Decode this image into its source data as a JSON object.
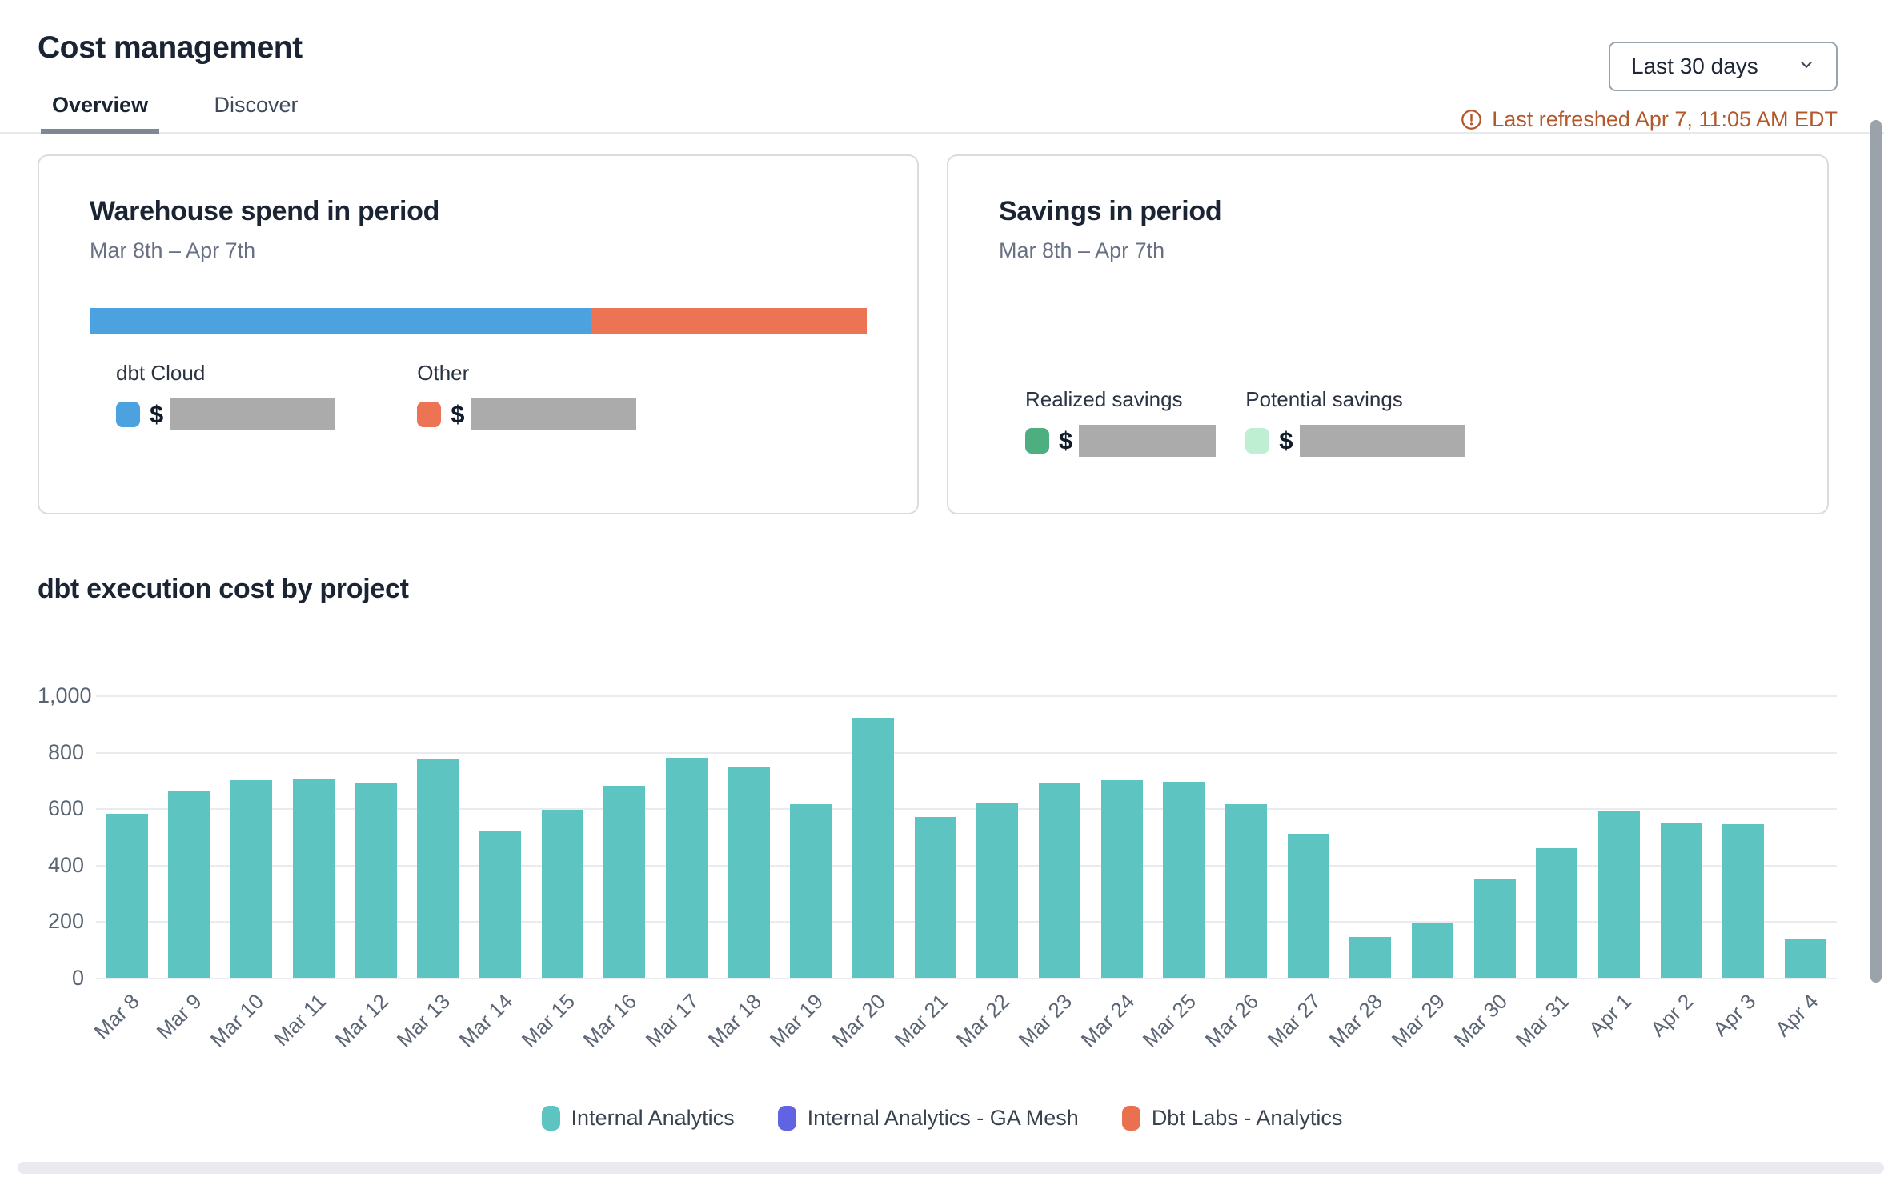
{
  "page": {
    "title": "Cost management"
  },
  "controls": {
    "date_range": {
      "value": "Last 30 days"
    },
    "refresh": {
      "text": "Last refreshed Apr 7, 11:05 AM EDT",
      "color": "#B2582A"
    }
  },
  "tabs": [
    {
      "label": "Overview",
      "active": true
    },
    {
      "label": "Discover",
      "active": false
    }
  ],
  "cards": {
    "warehouse": {
      "title": "Warehouse spend in period",
      "subtitle": "Mar 8th – Apr 7th",
      "entries": [
        {
          "label": "dbt Cloud",
          "color": "#4BA2DF",
          "currency_symbol": "$",
          "value_redacted": true,
          "share_pct": 64.6
        },
        {
          "label": "Other",
          "color": "#ED7355",
          "currency_symbol": "$",
          "value_redacted": true,
          "share_pct": 35.4
        }
      ]
    },
    "savings": {
      "title": "Savings in period",
      "subtitle": "Mar 8th – Apr 7th",
      "entries": [
        {
          "label": "Realized savings",
          "color": "#4DAE80",
          "currency_symbol": "$",
          "value_redacted": true
        },
        {
          "label": "Potential savings",
          "color": "#BEEFD3",
          "currency_symbol": "$",
          "value_redacted": true
        }
      ]
    }
  },
  "chart_section": {
    "title": "dbt execution cost by project"
  },
  "chart_data": {
    "type": "bar",
    "title": "dbt execution cost by project",
    "categories": [
      "Mar 8",
      "Mar 9",
      "Mar 10",
      "Mar 11",
      "Mar 12",
      "Mar 13",
      "Mar 14",
      "Mar 15",
      "Mar 16",
      "Mar 17",
      "Mar 18",
      "Mar 19",
      "Mar 20",
      "Mar 21",
      "Mar 22",
      "Mar 23",
      "Mar 24",
      "Mar 25",
      "Mar 26",
      "Mar 27",
      "Mar 28",
      "Mar 29",
      "Mar 30",
      "Mar 31",
      "Apr 1",
      "Apr 2",
      "Apr 3",
      "Apr 4"
    ],
    "series": [
      {
        "name": "Internal Analytics",
        "color": "#5EC4C2",
        "values": [
          580,
          660,
          700,
          705,
          690,
          775,
          520,
          595,
          680,
          780,
          745,
          615,
          920,
          570,
          620,
          690,
          700,
          695,
          615,
          510,
          145,
          195,
          350,
          460,
          590,
          550,
          545,
          135
        ]
      },
      {
        "name": "Internal Analytics - GA Mesh",
        "color": "#6064E3"
      },
      {
        "name": "Dbt Labs - Analytics",
        "color": "#E97150"
      }
    ],
    "ylim": [
      0,
      1000
    ],
    "yticks": [
      0,
      200,
      400,
      600,
      800,
      1000
    ],
    "grid": true,
    "legend_position": "bottom",
    "x_tick_rotation": -45
  }
}
